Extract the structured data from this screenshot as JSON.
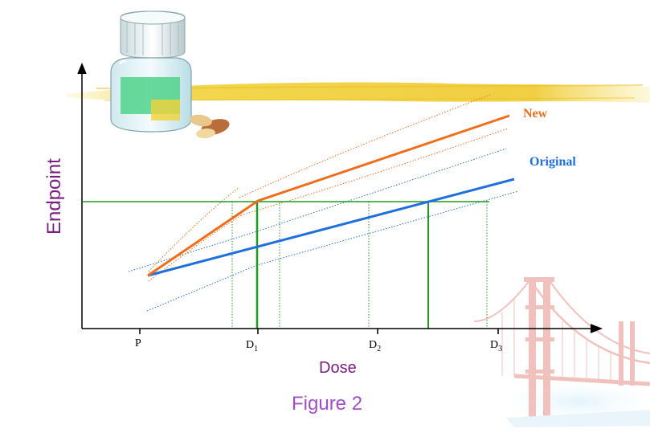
{
  "labels": {
    "y_axis": "Endpoint",
    "x_axis": "Dose",
    "caption": "Figure 2",
    "new_label": "New",
    "original_label": "Original"
  },
  "ticks": {
    "p": "P",
    "d1": "D",
    "d1_sub": "1",
    "d2": "D",
    "d2_sub": "2",
    "d3": "D",
    "d3_sub": "3"
  },
  "colors": {
    "new": "#ee6e1c",
    "original": "#1f6fdc",
    "threshold": "#1e9a1e",
    "axis_label": "#7a1f80",
    "caption": "#a24fc4",
    "highlighter": "#f2d23a"
  },
  "decorations": {
    "bottle": "pill-bottle-icon",
    "pills": "pills-icon",
    "bridge": "golden-gate-bridge-icon",
    "stroke": "highlighter-stroke"
  }
}
